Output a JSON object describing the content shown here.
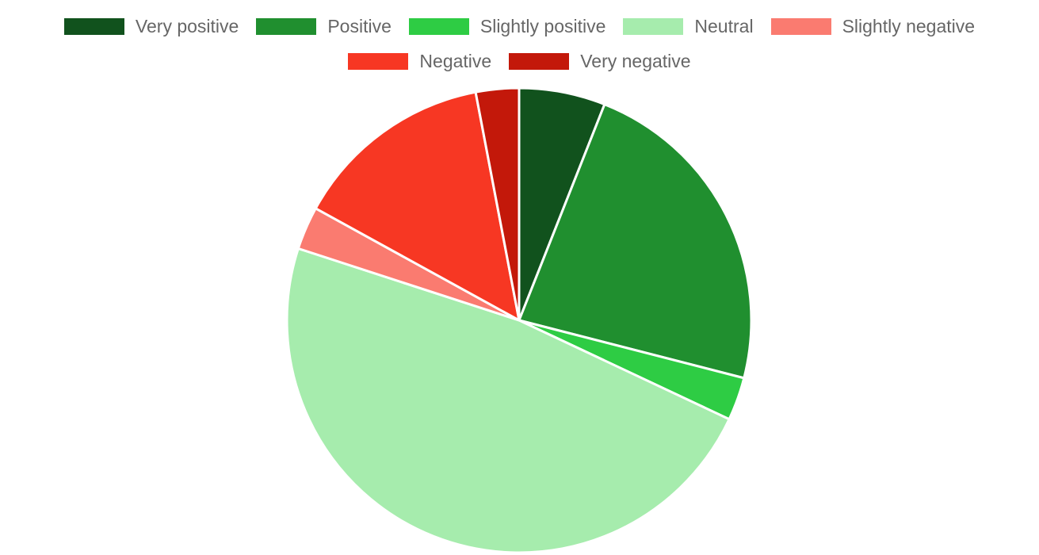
{
  "chart_data": {
    "type": "pie",
    "title": "",
    "legend_position": "top",
    "slices": [
      {
        "label": "Very positive",
        "value": 6,
        "color": "#11521d"
      },
      {
        "label": "Positive",
        "value": 23,
        "color": "#208f2f"
      },
      {
        "label": "Slightly positive",
        "value": 3,
        "color": "#2ecc44"
      },
      {
        "label": "Neutral",
        "value": 48,
        "color": "#a6ecad"
      },
      {
        "label": "Slightly negative",
        "value": 3,
        "color": "#fa7b70"
      },
      {
        "label": "Negative",
        "value": 14,
        "color": "#f73723"
      },
      {
        "label": "Very negative",
        "value": 3,
        "color": "#c3180a"
      }
    ]
  }
}
